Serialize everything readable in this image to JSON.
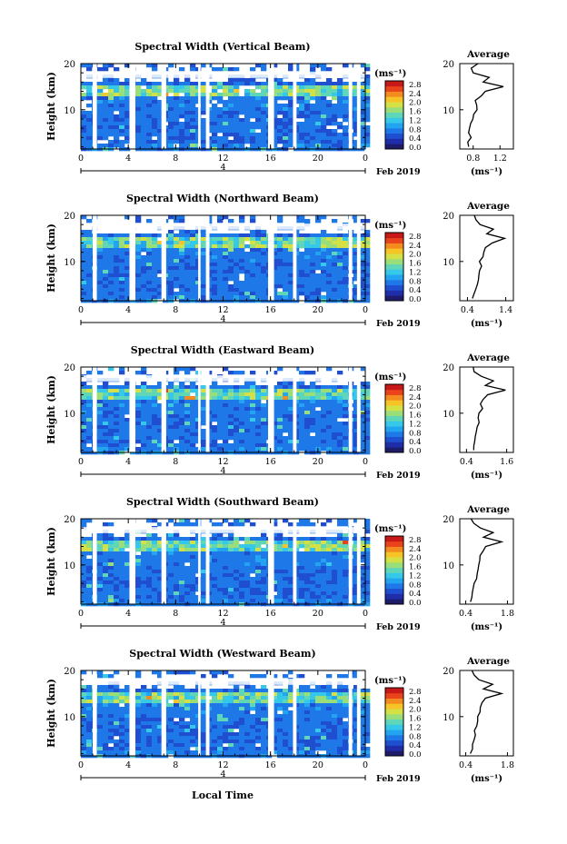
{
  "figure": {
    "xaxis_title": "Local Time",
    "date_label": "Feb 2019",
    "colorbar_unit": "(ms⁻¹)",
    "colorbar_ticks": [
      "0.0",
      "0.4",
      "0.8",
      "1.2",
      "1.6",
      "2.0",
      "2.4",
      "2.8"
    ],
    "colorscale": [
      "#1e1b6b",
      "#1f2ea8",
      "#1f4fd0",
      "#1f78e8",
      "#22a4f0",
      "#35c8e8",
      "#5fd6b8",
      "#9ade7a",
      "#d4e043",
      "#f7c428",
      "#f38b1e",
      "#e9431c",
      "#c91818"
    ],
    "height_label": "Height (km)",
    "average_title": "Average"
  },
  "chart_data": [
    {
      "type": "heatmap",
      "title": "Spectral Width (Vertical Beam)",
      "xlabel": "",
      "ylabel": "Height (km)",
      "x_ticks": [
        "0",
        "4",
        "8",
        "12",
        "16",
        "20",
        "0"
      ],
      "x_center_label": "4",
      "y_ticks": [
        "20",
        "10"
      ],
      "ylim": [
        1.5,
        20
      ],
      "xlim_hours": [
        0,
        24
      ],
      "colorbar_range": [
        0.0,
        2.8
      ],
      "average_profile": {
        "title": "Average",
        "xlabel": "(ms⁻¹)",
        "x_ticks": [
          "0.8",
          "1.2"
        ],
        "xlim": [
          0.6,
          1.4
        ],
        "height_km": [
          2,
          3,
          4,
          5,
          6,
          7,
          8,
          9,
          10,
          11,
          12,
          13,
          14,
          15,
          16,
          17,
          18,
          19,
          20
        ],
        "width_ms": [
          0.72,
          0.7,
          0.74,
          0.73,
          0.76,
          0.78,
          0.82,
          0.8,
          0.84,
          0.88,
          0.86,
          0.92,
          1.0,
          1.25,
          0.95,
          1.05,
          0.8,
          0.78,
          0.88
        ]
      }
    },
    {
      "type": "heatmap",
      "title": "Spectral Width (Northward Beam)",
      "xlabel": "",
      "ylabel": "Height (km)",
      "x_ticks": [
        "0",
        "4",
        "8",
        "12",
        "16",
        "20",
        "0"
      ],
      "x_center_label": "4",
      "y_ticks": [
        "20",
        "10"
      ],
      "ylim": [
        1.5,
        20
      ],
      "xlim_hours": [
        0,
        24
      ],
      "colorbar_range": [
        0.0,
        2.8
      ],
      "average_profile": {
        "title": "Average",
        "xlabel": "(ms⁻¹)",
        "x_ticks": [
          "0.4",
          "1.4"
        ],
        "xlim": [
          0.2,
          1.6
        ],
        "height_km": [
          2,
          3,
          4,
          5,
          6,
          7,
          8,
          9,
          10,
          11,
          12,
          13,
          14,
          15,
          16,
          17,
          18,
          19,
          20
        ],
        "width_ms": [
          0.55,
          0.6,
          0.62,
          0.65,
          0.66,
          0.7,
          0.72,
          0.74,
          0.7,
          0.78,
          0.82,
          0.86,
          1.05,
          1.35,
          0.88,
          1.1,
          0.75,
          0.6,
          0.55
        ]
      }
    },
    {
      "type": "heatmap",
      "title": "Spectral Width (Eastward Beam)",
      "xlabel": "",
      "ylabel": "Height (km)",
      "x_ticks": [
        "0",
        "4",
        "8",
        "12",
        "16",
        "20",
        "0"
      ],
      "x_center_label": "4",
      "y_ticks": [
        "20",
        "10"
      ],
      "ylim": [
        1.5,
        20
      ],
      "xlim_hours": [
        0,
        24
      ],
      "colorbar_range": [
        0.0,
        2.8
      ],
      "average_profile": {
        "title": "Average",
        "xlabel": "(ms⁻¹)",
        "x_ticks": [
          "0.4",
          "1.6"
        ],
        "xlim": [
          0.2,
          1.8
        ],
        "height_km": [
          2,
          3,
          4,
          5,
          6,
          7,
          8,
          9,
          10,
          11,
          12,
          13,
          14,
          15,
          16,
          17,
          18,
          19,
          20
        ],
        "width_ms": [
          0.6,
          0.62,
          0.66,
          0.68,
          0.72,
          0.74,
          0.78,
          0.76,
          0.8,
          0.86,
          0.84,
          0.92,
          1.05,
          1.55,
          0.95,
          1.2,
          0.82,
          0.62,
          0.58
        ]
      }
    },
    {
      "type": "heatmap",
      "title": "Spectral Width (Southward Beam)",
      "xlabel": "",
      "ylabel": "Height (km)",
      "x_ticks": [
        "0",
        "4",
        "8",
        "12",
        "16",
        "20",
        "0"
      ],
      "x_center_label": "4",
      "y_ticks": [
        "20",
        "10"
      ],
      "ylim": [
        1.5,
        20
      ],
      "xlim_hours": [
        0,
        24
      ],
      "colorbar_range": [
        0.0,
        2.8
      ],
      "average_profile": {
        "title": "Average",
        "xlabel": "(ms⁻¹)",
        "x_ticks": [
          "0.4",
          "1.8"
        ],
        "xlim": [
          0.2,
          2.0
        ],
        "height_km": [
          2,
          3,
          4,
          5,
          6,
          7,
          8,
          9,
          10,
          11,
          12,
          13,
          14,
          15,
          16,
          17,
          18,
          19,
          20
        ],
        "width_ms": [
          0.58,
          0.62,
          0.64,
          0.68,
          0.7,
          0.74,
          0.78,
          0.8,
          0.82,
          0.88,
          0.9,
          0.98,
          1.1,
          1.62,
          1.0,
          1.3,
          0.9,
          0.7,
          0.6
        ]
      }
    },
    {
      "type": "heatmap",
      "title": "Spectral Width (Westward Beam)",
      "xlabel": "Local Time",
      "ylabel": "Height (km)",
      "x_ticks": [
        "0",
        "4",
        "8",
        "12",
        "16",
        "20",
        "0"
      ],
      "x_center_label": "4",
      "y_ticks": [
        "20",
        "10"
      ],
      "ylim": [
        1.5,
        20
      ],
      "xlim_hours": [
        0,
        24
      ],
      "colorbar_range": [
        0.0,
        2.8
      ],
      "average_profile": {
        "title": "Average",
        "xlabel": "(ms⁻¹)",
        "x_ticks": [
          "0.4",
          "1.8"
        ],
        "xlim": [
          0.2,
          2.0
        ],
        "height_km": [
          2,
          3,
          4,
          5,
          6,
          7,
          8,
          9,
          10,
          11,
          12,
          13,
          14,
          15,
          16,
          17,
          18,
          19,
          20
        ],
        "width_ms": [
          0.56,
          0.6,
          0.64,
          0.66,
          0.7,
          0.72,
          0.76,
          0.78,
          0.8,
          0.86,
          0.88,
          0.96,
          1.08,
          1.6,
          0.98,
          1.28,
          0.86,
          0.66,
          0.58
        ]
      }
    }
  ]
}
